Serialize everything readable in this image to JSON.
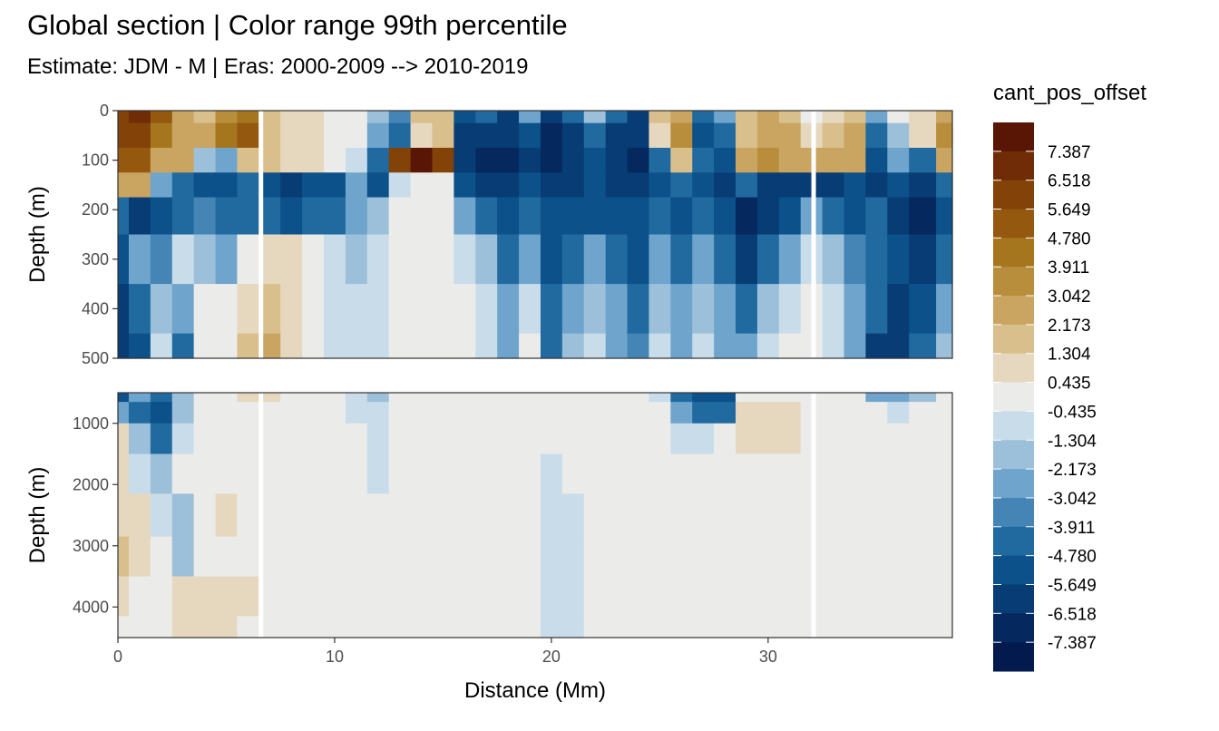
{
  "title": "Global section | Color range 99th percentile",
  "subtitle": "Estimate: JDM - M | Eras: 2000-2009 --> 2010-2019",
  "chart_data": {
    "type": "heatmap",
    "xlabel": "Distance (Mm)",
    "xlim": [
      0,
      38.5
    ],
    "x_ticks": [
      "0",
      "10",
      "20",
      "30"
    ],
    "x_tick_values": [
      0,
      10,
      20,
      30
    ],
    "panels": [
      {
        "ylabel": "Depth (m)",
        "ylim": [
          0,
          500
        ],
        "y_reversed": true,
        "y_ticks": [
          "0",
          "100",
          "200",
          "300",
          "400",
          "500"
        ],
        "y_tick_values": [
          0,
          100,
          200,
          300,
          400,
          500
        ],
        "x_nodes": [
          0,
          1,
          2,
          3,
          4,
          5,
          6,
          7,
          8,
          9,
          10,
          11,
          12,
          13,
          14,
          15,
          16,
          17,
          18,
          19,
          20,
          21,
          22,
          23,
          24,
          25,
          26,
          27,
          28,
          29,
          30,
          31,
          32,
          33,
          34,
          35,
          36,
          37,
          38.5
        ],
        "depth_nodes": [
          0,
          50,
          100,
          150,
          200,
          300,
          400,
          500
        ],
        "values": [
          [
            6.5,
            7.0,
            5.0,
            3.0,
            2.0,
            3.5,
            4.5,
            1.5,
            1.3,
            1.3,
            0.4,
            0.4,
            -2.0,
            -3.5,
            1.5,
            2.0,
            -5.0,
            -4.0,
            -6.0,
            -3.0,
            -6.5,
            -4.0,
            -2.0,
            -4.5,
            -6.0,
            1.5,
            3.0,
            -4.0,
            -3.0,
            1.5,
            2.5,
            2.0,
            0.4,
            1.3,
            2.0,
            -3.0,
            0.4,
            1.3,
            3.0
          ],
          [
            6.0,
            6.5,
            4.0,
            3.0,
            2.5,
            4.0,
            5.0,
            2.0,
            1.3,
            1.3,
            0.4,
            0.4,
            -3.0,
            -4.0,
            1.0,
            2.0,
            -6.0,
            -6.0,
            -6.5,
            -5.0,
            -7.0,
            -6.0,
            -4.0,
            -6.0,
            -6.5,
            1.0,
            3.5,
            -5.0,
            -4.0,
            2.0,
            3.0,
            2.5,
            1.3,
            2.0,
            2.5,
            -4.0,
            -2.0,
            1.3,
            3.5
          ],
          [
            5.5,
            5.0,
            3.0,
            2.5,
            -2.0,
            -3.0,
            1.5,
            2.0,
            1.3,
            1.3,
            0.4,
            -1.3,
            -4.0,
            6.5,
            7.5,
            6.5,
            -6.5,
            -7.0,
            -7.0,
            -6.0,
            -7.0,
            -6.5,
            -5.0,
            -6.5,
            -7.0,
            -4.0,
            2.0,
            -4.0,
            -5.0,
            2.5,
            3.5,
            3.0,
            2.5,
            3.0,
            3.0,
            -5.0,
            -3.0,
            -4.0,
            3.0
          ],
          [
            3.0,
            2.5,
            -3.0,
            -4.0,
            -5.0,
            -5.5,
            -4.0,
            -5.0,
            -6.0,
            -5.5,
            -5.0,
            -3.0,
            -5.0,
            -1.3,
            -0.4,
            -0.4,
            -5.0,
            -6.5,
            -6.5,
            -5.5,
            -6.5,
            -6.0,
            -5.5,
            -6.0,
            -6.5,
            -5.0,
            -4.0,
            -5.5,
            -6.0,
            -4.0,
            -6.0,
            -6.5,
            -6.0,
            -6.0,
            -5.0,
            -6.0,
            -5.5,
            -6.0,
            -4.0
          ],
          [
            -4.0,
            -6.0,
            -5.0,
            -4.0,
            -3.5,
            -4.5,
            -4.0,
            -4.5,
            -5.0,
            -4.5,
            -4.0,
            -3.0,
            -2.0,
            -0.4,
            -0.4,
            -0.4,
            -3.0,
            -4.0,
            -5.0,
            -4.0,
            -5.5,
            -5.0,
            -5.0,
            -5.0,
            -5.5,
            -4.0,
            -5.0,
            -4.5,
            -5.5,
            -7.0,
            -6.5,
            -5.0,
            -3.0,
            -4.0,
            -5.0,
            -4.0,
            -6.0,
            -7.0,
            -5.0
          ],
          [
            -5.0,
            -3.0,
            -3.5,
            -1.3,
            -2.0,
            -3.0,
            0.4,
            1.3,
            1.3,
            0.4,
            -1.3,
            -2.0,
            -1.3,
            -0.4,
            -0.4,
            -0.4,
            -1.3,
            -2.0,
            -4.0,
            -2.5,
            -5.0,
            -4.0,
            -3.0,
            -4.0,
            -5.0,
            -3.0,
            -4.0,
            -3.0,
            -4.5,
            -6.0,
            -4.0,
            -3.0,
            -1.3,
            -2.0,
            -3.5,
            -4.0,
            -5.5,
            -6.0,
            -4.0
          ],
          [
            -6.0,
            -4.0,
            -2.0,
            -3.0,
            -0.4,
            0.4,
            1.3,
            2.0,
            1.3,
            0.4,
            -1.3,
            -1.3,
            -1.3,
            -0.4,
            -0.4,
            -0.4,
            -0.4,
            -1.3,
            -3.0,
            -1.3,
            -4.5,
            -3.0,
            -2.0,
            -3.0,
            -4.0,
            -2.0,
            -3.0,
            -2.0,
            -3.0,
            -4.0,
            -2.0,
            -1.3,
            -0.4,
            -1.3,
            -3.0,
            -4.5,
            -6.0,
            -5.0,
            -3.0
          ],
          [
            -6.5,
            -5.0,
            -1.3,
            -4.0,
            -0.4,
            0.4,
            2.0,
            2.5,
            1.3,
            0.4,
            -1.3,
            -1.3,
            -1.3,
            -0.4,
            -0.4,
            -0.4,
            -0.4,
            -1.3,
            -3.0,
            -0.4,
            -4.0,
            -2.0,
            -1.3,
            -2.5,
            -3.5,
            -1.3,
            -2.5,
            -1.3,
            -2.5,
            -3.0,
            -1.3,
            -0.4,
            -0.4,
            -1.3,
            -3.0,
            -6.5,
            -6.0,
            -4.5,
            -2.0
          ]
        ]
      },
      {
        "ylabel": "Depth (m)",
        "ylim": [
          500,
          4500
        ],
        "y_reversed": true,
        "y_ticks": [
          "1000",
          "2000",
          "3000",
          "4000"
        ],
        "y_tick_values": [
          1000,
          2000,
          3000,
          4000
        ],
        "x_nodes": [
          0,
          1,
          2,
          3,
          4,
          5,
          6,
          7,
          8,
          9,
          10,
          11,
          12,
          13,
          14,
          15,
          16,
          17,
          18,
          19,
          20,
          21,
          22,
          23,
          24,
          25,
          26,
          27,
          28,
          29,
          30,
          31,
          32,
          33,
          34,
          35,
          36,
          37,
          38.5
        ],
        "depth_nodes": [
          500,
          800,
          1200,
          1800,
          2500,
          3200,
          3800,
          4500
        ],
        "values": [
          [
            -5.0,
            -3.0,
            -4.0,
            -2.0,
            -0.4,
            0.4,
            1.3,
            1.3,
            0.4,
            0.4,
            0.4,
            -1.3,
            -2.0,
            -0.4,
            -0.4,
            0.4,
            0.4,
            -0.4,
            -0.4,
            -0.4,
            -0.4,
            -0.4,
            -0.4,
            -0.4,
            -0.4,
            -1.3,
            -4.0,
            -5.0,
            -5.5,
            -0.4,
            0.4,
            0.4,
            -0.4,
            -0.4,
            -0.4,
            -3.0,
            -3.0,
            -2.0,
            -0.4
          ],
          [
            -3.0,
            -4.0,
            -5.0,
            -2.0,
            -0.4,
            -0.4,
            0.4,
            0.4,
            0.4,
            0.4,
            -0.4,
            -1.3,
            -1.3,
            -0.4,
            -0.4,
            -0.4,
            -0.4,
            -0.4,
            -0.4,
            -0.4,
            -0.4,
            -0.4,
            -0.4,
            -0.4,
            -0.4,
            -0.4,
            -3.0,
            -4.5,
            -4.0,
            1.3,
            1.3,
            1.3,
            0.4,
            0.4,
            -0.4,
            -0.4,
            -1.3,
            -0.4,
            -0.4
          ],
          [
            1.3,
            -2.0,
            -4.0,
            -1.3,
            -0.4,
            -0.4,
            0.4,
            0.4,
            -0.4,
            -0.4,
            -0.4,
            -0.4,
            -1.3,
            -0.4,
            -0.4,
            -0.4,
            -0.4,
            -0.4,
            -0.4,
            -0.4,
            -0.4,
            -0.4,
            -0.4,
            -0.4,
            -0.4,
            -0.4,
            -1.3,
            -1.3,
            -0.4,
            1.3,
            1.3,
            1.3,
            0.4,
            -0.4,
            -0.4,
            -0.4,
            -0.4,
            -0.4,
            -0.4
          ],
          [
            1.3,
            -1.3,
            -2.0,
            -0.4,
            0.4,
            0.4,
            0.4,
            0.4,
            -0.4,
            -0.4,
            -0.4,
            -0.4,
            -1.3,
            -0.4,
            -0.4,
            -0.4,
            -0.4,
            -0.4,
            -0.4,
            -0.4,
            -1.3,
            -0.4,
            -0.4,
            -0.4,
            -0.4,
            -0.4,
            -0.4,
            -0.4,
            -0.4,
            -0.4,
            -0.4,
            -0.4,
            -0.4,
            -0.4,
            -0.4,
            -0.4,
            -0.4,
            -0.4,
            -0.4
          ],
          [
            1.3,
            1.3,
            -1.3,
            -2.0,
            0.4,
            1.3,
            0.4,
            0.4,
            -0.4,
            -0.4,
            -0.4,
            -0.4,
            -0.4,
            -0.4,
            -0.4,
            -0.4,
            -0.4,
            -0.4,
            -0.4,
            -0.4,
            -1.3,
            -1.3,
            -0.4,
            -0.4,
            -0.4,
            -0.4,
            -0.4,
            -0.4,
            -0.4,
            -0.4,
            -0.4,
            -0.4,
            -0.4,
            -0.4,
            -0.4,
            -0.4,
            -0.4,
            -0.4,
            -0.4
          ],
          [
            2.0,
            1.3,
            -0.4,
            -2.0,
            -0.4,
            0.4,
            0.4,
            0.4,
            -0.4,
            -0.4,
            -0.4,
            -0.4,
            -0.4,
            -0.4,
            -0.4,
            -0.4,
            -0.4,
            -0.4,
            -0.4,
            -0.4,
            -1.3,
            -1.3,
            -0.4,
            -0.4,
            -0.4,
            -0.4,
            -0.4,
            -0.4,
            -0.4,
            -0.4,
            -0.4,
            -0.4,
            -0.4,
            -0.4,
            -0.4,
            -0.4,
            -0.4,
            -0.4,
            -0.4
          ],
          [
            1.3,
            -0.4,
            0.4,
            1.3,
            1.3,
            1.3,
            1.3,
            0.4,
            -0.4,
            -0.4,
            -0.4,
            -0.4,
            -0.4,
            -0.4,
            -0.4,
            -0.4,
            -0.4,
            -0.4,
            -0.4,
            -0.4,
            -1.3,
            -1.3,
            -0.4,
            -0.4,
            -0.4,
            -0.4,
            -0.4,
            -0.4,
            -0.4,
            -0.4,
            -0.4,
            -0.4,
            -0.4,
            -0.4,
            -0.4,
            -0.4,
            -0.4,
            -0.4,
            -0.4
          ],
          [
            -0.4,
            -0.4,
            0.4,
            1.3,
            1.3,
            1.3,
            0.4,
            0.4,
            -0.4,
            -0.4,
            -0.4,
            -0.4,
            0.4,
            -0.4,
            -0.4,
            -0.4,
            -0.4,
            -0.4,
            -0.4,
            -0.4,
            -1.3,
            -1.3,
            -0.4,
            -0.4,
            -0.4,
            -0.4,
            -0.4,
            -0.4,
            -0.4,
            -0.4,
            -0.4,
            -0.4,
            -0.4,
            -0.4,
            -0.4,
            -0.4,
            -0.4,
            -0.4,
            -0.4
          ]
        ]
      }
    ],
    "missing_columns_mm": [
      6.6,
      32.1
    ],
    "legend": {
      "title": "cant_pos_offset",
      "placement": "right",
      "labels": [
        "7.387",
        "6.518",
        "5.649",
        "4.780",
        "3.911",
        "3.042",
        "2.173",
        "1.304",
        "0.435",
        "-0.435",
        "-1.304",
        "-2.173",
        "-3.042",
        "-3.911",
        "-4.780",
        "-5.649",
        "-6.518",
        "-7.387"
      ],
      "colors": [
        "#5a1605",
        "#6f2c06",
        "#834208",
        "#94590e",
        "#a6761f",
        "#b88e3c",
        "#c9a561",
        "#d9bf8c",
        "#e6d8bf",
        "#ebecea",
        "#c9dce9",
        "#9dc0da",
        "#6fa5cc",
        "#4585b6",
        "#216aa0",
        "#0c5189",
        "#083c75",
        "#05285f",
        "#031a4e"
      ]
    }
  }
}
